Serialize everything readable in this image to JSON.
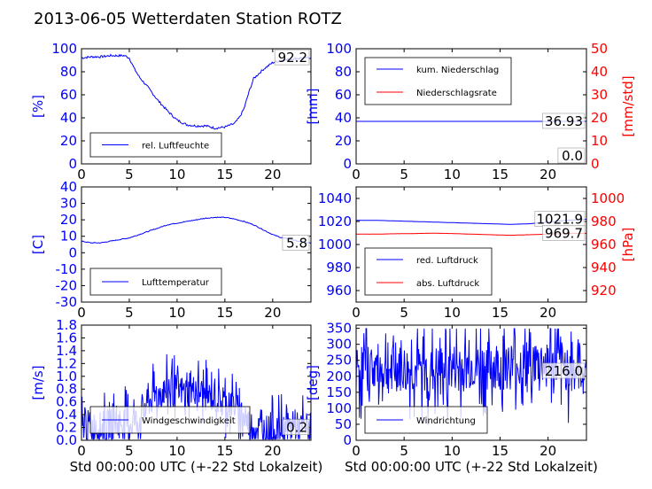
{
  "title": "2013-06-05 Wetterdaten Station ROTZ",
  "colors": {
    "primary": "#0000ff",
    "secondary": "#ff0000",
    "light": "#8080ff"
  },
  "chart_data": [
    {
      "id": "humidity",
      "type": "line",
      "xlim": [
        0,
        24
      ],
      "xticks": [
        0,
        5,
        10,
        15,
        20
      ],
      "ylim": [
        0,
        100
      ],
      "yticks": [
        0,
        20,
        40,
        60,
        80,
        100
      ],
      "ylabel": "[%]",
      "xlabel": "",
      "legend": "bottom-left",
      "last_value_label": "92.2",
      "series": [
        {
          "name": "rel. Luftfeuchte",
          "color": "#0000ff",
          "axis": "left",
          "noise": 2,
          "x": [
            0,
            1,
            2,
            3,
            4,
            4.5,
            5,
            5.5,
            6,
            7,
            8,
            9,
            10,
            11,
            12,
            13,
            14,
            15,
            16,
            16.5,
            17,
            17.5,
            18,
            19,
            20,
            21,
            22,
            23,
            24
          ],
          "y": [
            92,
            93,
            93,
            94,
            94,
            94,
            92,
            83,
            76,
            66,
            55,
            46,
            38,
            34,
            33,
            33,
            31,
            32,
            35,
            40,
            48,
            62,
            74,
            82,
            88,
            90,
            91,
            92,
            92.2
          ]
        }
      ]
    },
    {
      "id": "rain",
      "type": "line",
      "xlim": [
        0,
        24
      ],
      "xticks": [
        0,
        5,
        10,
        15,
        20
      ],
      "ylim": [
        0,
        100
      ],
      "yticks": [
        0,
        20,
        40,
        60,
        80,
        100
      ],
      "ylabel": "[mm]",
      "xlabel": "",
      "y2lim": [
        0,
        50
      ],
      "y2ticks": [
        0,
        10,
        20,
        30,
        40,
        50
      ],
      "y2label": "[mm/std]",
      "legend": "top-left",
      "last_value_label": "36.93",
      "last_value_label2": "0.0",
      "series": [
        {
          "name": "kum. Niederschlag",
          "color": "#0000ff",
          "axis": "left",
          "noise": 0,
          "x": [
            0,
            24
          ],
          "y": [
            36.93,
            36.93
          ]
        },
        {
          "name": "Niederschlagsrate",
          "color": "#ff0000",
          "axis": "right",
          "noise": 0,
          "x": [
            0,
            24
          ],
          "y": [
            0,
            0
          ]
        }
      ]
    },
    {
      "id": "temperature",
      "type": "line",
      "xlim": [
        0,
        24
      ],
      "xticks": [
        0,
        5,
        10,
        15,
        20
      ],
      "ylim": [
        -30,
        40
      ],
      "yticks": [
        -30,
        -20,
        -10,
        0,
        10,
        20,
        30,
        40
      ],
      "ylabel": "[C]",
      "xlabel": "",
      "legend": "bottom-left",
      "last_value_label": "5.8",
      "series": [
        {
          "name": "Lufttemperatur",
          "color": "#0000ff",
          "axis": "left",
          "noise": 0.5,
          "x": [
            0,
            1,
            2,
            3,
            4,
            5,
            6,
            7,
            8,
            9,
            10,
            11,
            12,
            13,
            14,
            15,
            16,
            17,
            18,
            19,
            20,
            21,
            22,
            23,
            24
          ],
          "y": [
            7,
            6,
            6,
            7,
            8,
            9,
            11,
            13,
            15,
            17,
            18,
            19,
            20,
            21,
            21.5,
            21.5,
            20.5,
            19,
            17,
            14,
            11,
            9,
            8,
            6.5,
            5.8
          ]
        }
      ]
    },
    {
      "id": "pressure",
      "type": "line",
      "xlim": [
        0,
        24
      ],
      "xticks": [
        0,
        5,
        10,
        15,
        20
      ],
      "ylim": [
        950,
        1050
      ],
      "yticks": [
        960,
        980,
        1000,
        1020,
        1040
      ],
      "ylabel": "",
      "xlabel": "",
      "y2lim": [
        910,
        1010
      ],
      "y2ticks": [
        920,
        940,
        960,
        980,
        1000
      ],
      "y2label": "[hPa]",
      "legend": "bottom-left",
      "last_value_label": "1021.9",
      "last_value_label2": "969.7",
      "series": [
        {
          "name": "red. Luftdruck",
          "color": "#0000ff",
          "axis": "left",
          "noise": 0.1,
          "x": [
            0,
            2,
            4,
            6,
            8,
            10,
            12,
            14,
            16,
            18,
            20,
            22,
            24
          ],
          "y": [
            1021,
            1021,
            1020.5,
            1020,
            1019.5,
            1019,
            1018.5,
            1018,
            1017.5,
            1018,
            1019.5,
            1021,
            1021.9
          ]
        },
        {
          "name": "abs. Luftdruck",
          "color": "#ff0000",
          "axis": "right",
          "noise": 0.1,
          "x": [
            0,
            2,
            4,
            6,
            8,
            10,
            12,
            14,
            16,
            18,
            20,
            22,
            24
          ],
          "y": [
            969,
            969,
            969.3,
            969.5,
            969.8,
            969.5,
            969,
            968.5,
            968,
            968.5,
            969,
            969.5,
            969.7
          ]
        }
      ]
    },
    {
      "id": "wind",
      "type": "line",
      "xlim": [
        0,
        24
      ],
      "xticks": [
        0,
        5,
        10,
        15,
        20
      ],
      "ylim": [
        0,
        1.8
      ],
      "yticks": [
        0.0,
        0.2,
        0.4,
        0.6,
        0.8,
        1.0,
        1.2,
        1.4,
        1.6,
        1.8
      ],
      "ylabel": "[m/s]",
      "xlabel": "Std 00:00:00 UTC (+-22 Std Lokalzeit)",
      "legend": "bottom-left",
      "last_value_label": "0.2",
      "series": [
        {
          "name": "Windgeschwindigkeit",
          "color": "#0000ff",
          "axis": "left",
          "noise": 0.35,
          "spiky": true,
          "x": [
            0,
            2,
            4,
            5,
            6,
            7,
            8,
            9,
            10,
            11,
            12,
            13,
            14,
            15,
            16,
            17,
            18,
            20,
            22,
            24
          ],
          "y": [
            0.25,
            0.2,
            0.3,
            0.3,
            0.3,
            0.6,
            0.7,
            0.8,
            0.8,
            0.75,
            0.8,
            0.7,
            0.65,
            0.6,
            0.55,
            0.35,
            0.2,
            0.15,
            0.2,
            0.2
          ]
        }
      ]
    },
    {
      "id": "direction",
      "type": "line",
      "xlim": [
        0,
        24
      ],
      "xticks": [
        0,
        5,
        10,
        15,
        20
      ],
      "ylim": [
        0,
        360
      ],
      "yticks": [
        0,
        50,
        100,
        150,
        200,
        250,
        300,
        350
      ],
      "ylabel": "[deg]",
      "xlabel": "Std 00:00:00 UTC (+-22 Std Lokalzeit)",
      "legend": "bottom-left",
      "last_value_label": "216.0",
      "series": [
        {
          "name": "Windrichtung",
          "color": "#0000ff",
          "axis": "left",
          "noise": 110,
          "spiky": true,
          "x": [
            0,
            4,
            8,
            12,
            16,
            20,
            24
          ],
          "y": [
            230,
            220,
            215,
            230,
            235,
            240,
            216
          ]
        }
      ]
    }
  ]
}
